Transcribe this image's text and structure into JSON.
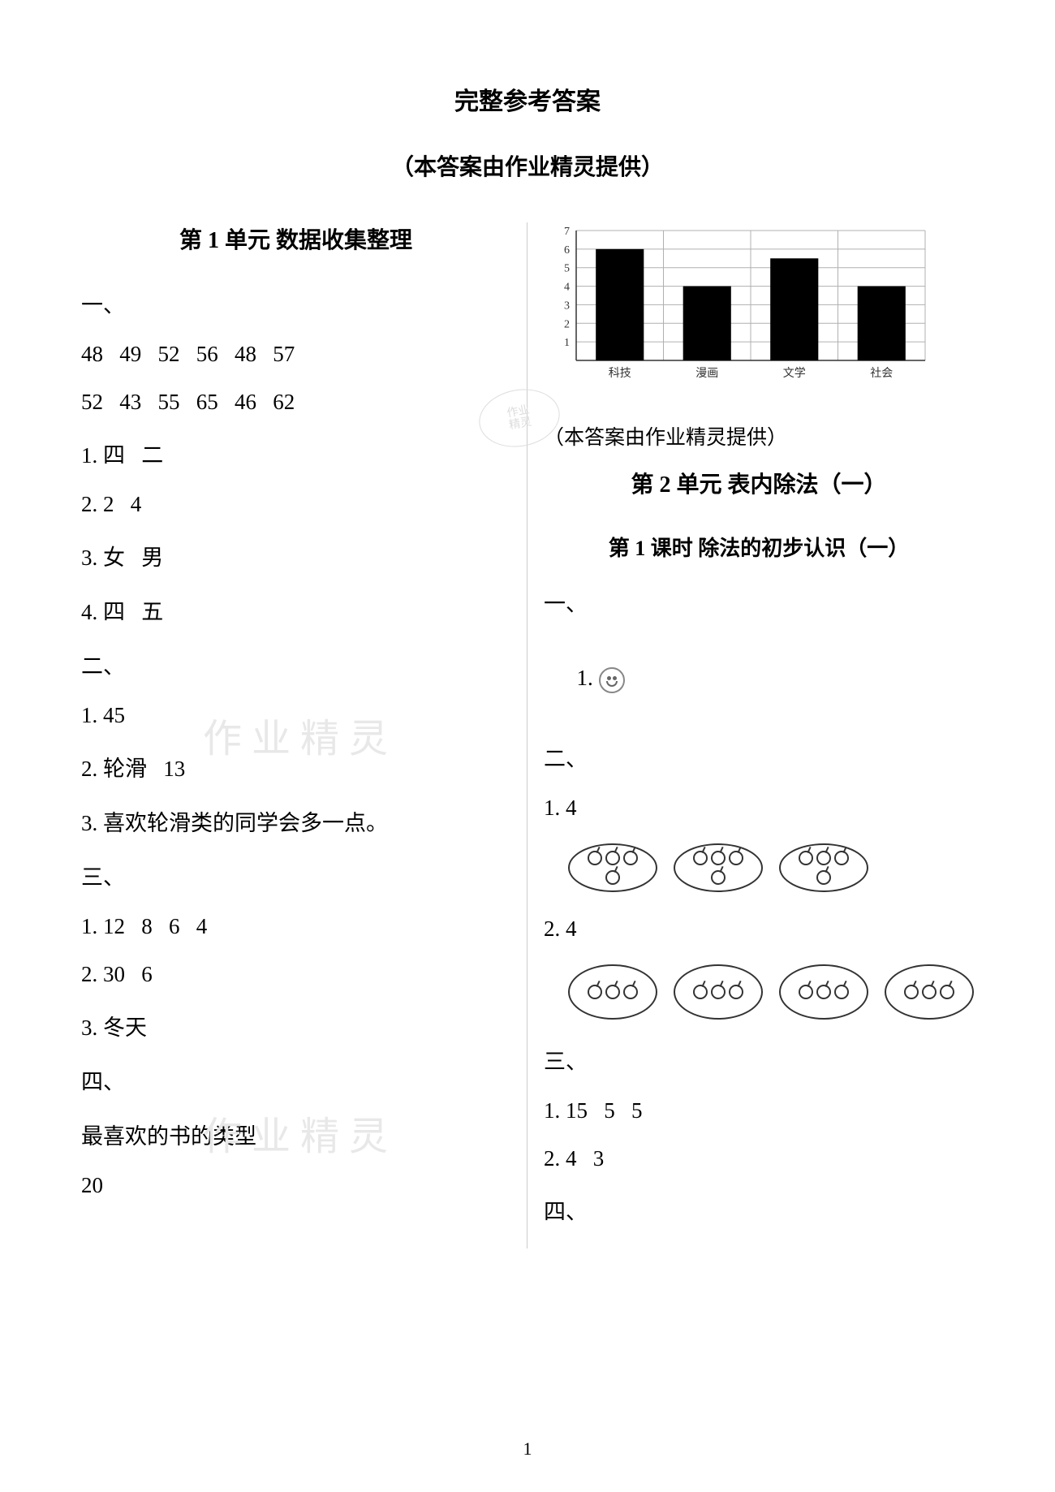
{
  "header": {
    "title": "完整参考答案",
    "subtitle": "（本答案由作业精灵提供）"
  },
  "left": {
    "unit_heading": "第 1 单元   数据收集整理",
    "sec1_label": "一、",
    "row1": "48   49   52   56   48   57",
    "row2": "52   43   55   65   46   62",
    "a1": "1. 四   二",
    "a2": "2. 2   4",
    "a3": "3. 女   男",
    "a4": "4. 四   五",
    "sec2_label": "二、",
    "b1": "1. 45",
    "b2": "2. 轮滑   13",
    "b3": "3. 喜欢轮滑类的同学会多一点。",
    "sec3_label": "三、",
    "c1": "1. 12   8   6   4",
    "c2": "2. 30   6",
    "c3": "3. 冬天",
    "sec4_label": "四、",
    "d1": "最喜欢的书的类型",
    "d2": "20"
  },
  "right": {
    "note": "（本答案由作业精灵提供）",
    "unit_heading": "第 2 单元   表内除法（一）",
    "lesson_heading": "第 1 课时   除法的初步认识（一）",
    "sec1_label": "一、",
    "r1_prefix": "1. ",
    "sec2_label": "二、",
    "r2": "1. 4",
    "r3": "2. 4",
    "sec3_label": "三、",
    "r4": "1. 15   5   5",
    "r5": "2. 4   3",
    "sec4_label": "四、"
  },
  "chart": {
    "categories": [
      "科技",
      "漫画",
      "文学",
      "社会"
    ],
    "values": [
      6,
      4,
      5.5,
      4
    ],
    "ylim": [
      0,
      7
    ],
    "ytick_step": 1,
    "bar_color": "#000000",
    "grid_color": "#b0b0b0",
    "axis_color": "#333333",
    "background": "#ffffff",
    "label_fontsize": 14,
    "bar_width": 0.55
  },
  "watermarks": {
    "text": "作业精灵"
  },
  "stamp": {
    "l1": "作业",
    "l2": "精灵"
  },
  "page_number": "1"
}
